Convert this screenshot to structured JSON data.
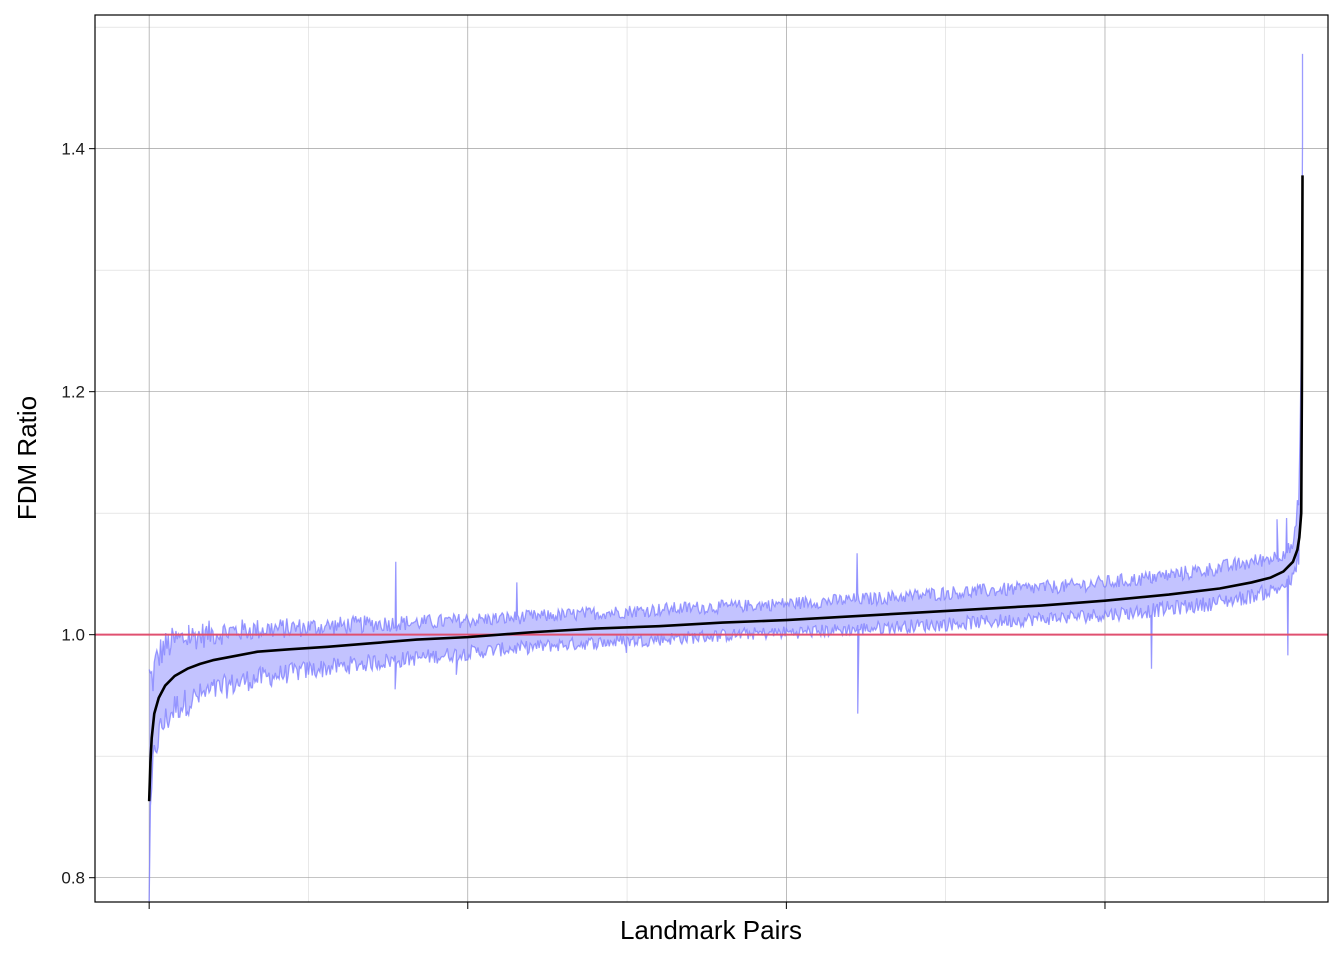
{
  "chart_data": {
    "type": "line",
    "title": "",
    "xlabel": "Landmark Pairs",
    "ylabel": "FDM Ratio",
    "x_range": [
      -85,
      1850
    ],
    "ylim": [
      0.78,
      1.51
    ],
    "n_points": 1810,
    "x_major_ticks": [
      0,
      500,
      1000,
      1500
    ],
    "x_minor_ticks": [
      250,
      750,
      1250,
      1750
    ],
    "x_tick_labels": [],
    "y_major_ticks": [
      0.8,
      1.0,
      1.2,
      1.4
    ],
    "y_minor_ticks": [
      0.9,
      1.1,
      1.3,
      1.5
    ],
    "y_tick_labels": [
      "0.8",
      "1.0",
      "1.2",
      "1.4"
    ],
    "grid": true,
    "reference_line": {
      "y": 1.0,
      "color": "#e05070"
    },
    "series": [
      {
        "role": "median",
        "color": "#000000",
        "points": [
          [
            0,
            0.863
          ],
          [
            2,
            0.895
          ],
          [
            4,
            0.915
          ],
          [
            8,
            0.935
          ],
          [
            15,
            0.948
          ],
          [
            25,
            0.958
          ],
          [
            40,
            0.966
          ],
          [
            60,
            0.972
          ],
          [
            80,
            0.976
          ],
          [
            100,
            0.979
          ],
          [
            130,
            0.982
          ],
          [
            170,
            0.986
          ],
          [
            220,
            0.988
          ],
          [
            280,
            0.99
          ],
          [
            350,
            0.993
          ],
          [
            420,
            0.996
          ],
          [
            500,
            0.998
          ],
          [
            600,
            1.002
          ],
          [
            700,
            1.005
          ],
          [
            800,
            1.007
          ],
          [
            900,
            1.01
          ],
          [
            1000,
            1.012
          ],
          [
            1100,
            1.015
          ],
          [
            1200,
            1.018
          ],
          [
            1300,
            1.021
          ],
          [
            1400,
            1.024
          ],
          [
            1500,
            1.028
          ],
          [
            1600,
            1.033
          ],
          [
            1680,
            1.038
          ],
          [
            1730,
            1.043
          ],
          [
            1760,
            1.047
          ],
          [
            1780,
            1.052
          ],
          [
            1795,
            1.06
          ],
          [
            1802,
            1.07
          ],
          [
            1805,
            1.08
          ],
          [
            1808,
            1.1
          ],
          [
            1809,
            1.2
          ],
          [
            1810,
            1.378
          ]
        ]
      },
      {
        "role": "interval",
        "color": "#7b7bff",
        "upper": [
          [
            0,
            0.945
          ],
          [
            5,
            0.955
          ],
          [
            10,
            0.97
          ],
          [
            20,
            0.982
          ],
          [
            40,
            0.99
          ],
          [
            70,
            0.994
          ],
          [
            100,
            0.997
          ],
          [
            150,
            1.0
          ],
          [
            250,
            1.003
          ],
          [
            350,
            1.006
          ],
          [
            450,
            1.008
          ],
          [
            550,
            1.011
          ],
          [
            650,
            1.014
          ],
          [
            750,
            1.017
          ],
          [
            850,
            1.02
          ],
          [
            950,
            1.022
          ],
          [
            1050,
            1.025
          ],
          [
            1150,
            1.028
          ],
          [
            1250,
            1.032
          ],
          [
            1350,
            1.035
          ],
          [
            1450,
            1.038
          ],
          [
            1550,
            1.043
          ],
          [
            1650,
            1.05
          ],
          [
            1720,
            1.056
          ],
          [
            1770,
            1.062
          ],
          [
            1795,
            1.07
          ],
          [
            1800,
            1.085
          ],
          [
            1805,
            1.12
          ],
          [
            1809,
            1.25
          ],
          [
            1810,
            1.4
          ]
        ],
        "lower": [
          [
            0,
            0.81
          ],
          [
            5,
            0.89
          ],
          [
            10,
            0.915
          ],
          [
            20,
            0.93
          ],
          [
            40,
            0.945
          ],
          [
            70,
            0.952
          ],
          [
            100,
            0.958
          ],
          [
            150,
            0.966
          ],
          [
            250,
            0.974
          ],
          [
            350,
            0.98
          ],
          [
            450,
            0.985
          ],
          [
            550,
            0.99
          ],
          [
            650,
            0.994
          ],
          [
            750,
            0.997
          ],
          [
            850,
            1.0
          ],
          [
            950,
            1.003
          ],
          [
            1050,
            1.005
          ],
          [
            1150,
            1.008
          ],
          [
            1250,
            1.011
          ],
          [
            1350,
            1.014
          ],
          [
            1450,
            1.017
          ],
          [
            1550,
            1.021
          ],
          [
            1650,
            1.027
          ],
          [
            1720,
            1.033
          ],
          [
            1770,
            1.04
          ],
          [
            1795,
            1.048
          ],
          [
            1800,
            1.058
          ],
          [
            1805,
            1.075
          ],
          [
            1809,
            1.15
          ],
          [
            1810,
            1.36
          ]
        ],
        "spikes": [
          [
            62,
            1.008
          ],
          [
            387,
            1.06
          ],
          [
            386,
            0.955
          ],
          [
            482,
            0.967
          ],
          [
            577,
            1.043
          ],
          [
            749,
            0.985
          ],
          [
            1111,
            1.067
          ],
          [
            1112,
            0.935
          ],
          [
            1330,
            1.035
          ],
          [
            1530,
            1.04
          ],
          [
            1573,
            0.972
          ],
          [
            1575,
            1.05
          ],
          [
            1770,
            1.095
          ],
          [
            1785,
            1.096
          ],
          [
            1787,
            0.983
          ],
          [
            1810,
            1.478
          ]
        ]
      }
    ]
  }
}
